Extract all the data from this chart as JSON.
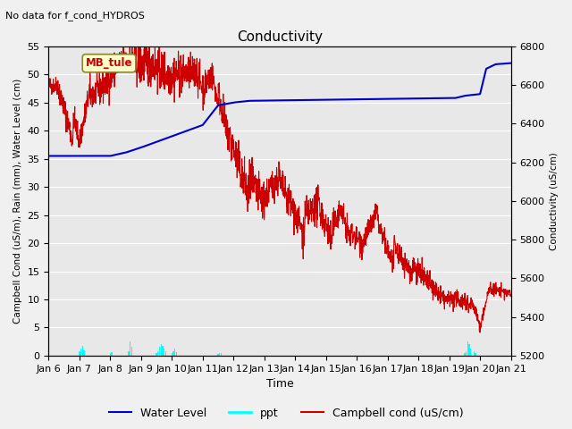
{
  "title": "Conductivity",
  "no_data_text": "No data for f_cond_HYDROS",
  "mb_tule_label": "MB_tule",
  "xlabel": "Time",
  "ylabel_left": "Campbell Cond (uS/m), Rain (mm), Water Level (cm)",
  "ylabel_right": "Conductivity (uS/cm)",
  "ylim_left": [
    0,
    55
  ],
  "ylim_right": [
    5200,
    6800
  ],
  "xlim": [
    0,
    15
  ],
  "x_tick_labels": [
    "Jan 6",
    "Jan 7",
    "Jan 8",
    "Jan 9",
    "Jan 10",
    "Jan 11",
    "Jan 12",
    "Jan 13",
    "Jan 14",
    "Jan 15",
    "Jan 16",
    "Jan 17",
    "Jan 18",
    "Jan 19",
    "Jan 20",
    "Jan 21"
  ],
  "fig_width": 6.4,
  "fig_height": 4.8,
  "dpi": 100,
  "background_color": "#f0f0f0",
  "plot_bg_color": "#e8e8e8",
  "water_level_color": "#0000cc",
  "ppt_color": "#00ffff",
  "campbell_color": "#cc0000",
  "grid_color": "white",
  "mb_tule_facecolor": "#ffffcc",
  "mb_tule_edgecolor": "#888833",
  "legend_labels": [
    "Water Level",
    "ppt",
    "Campbell cond (uS/cm)"
  ]
}
